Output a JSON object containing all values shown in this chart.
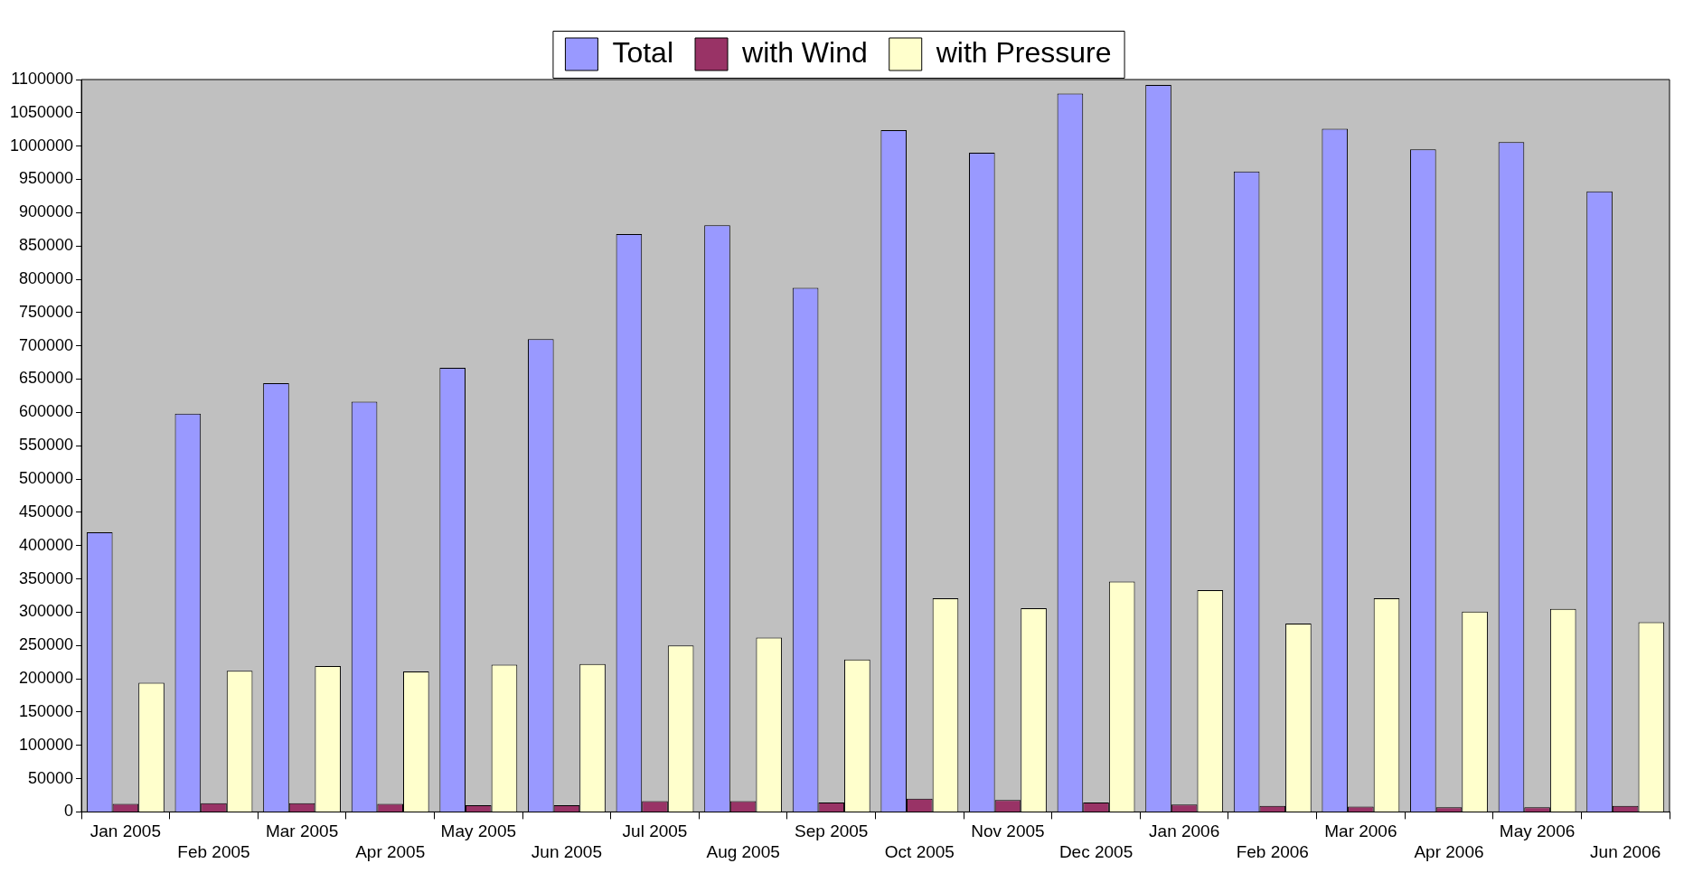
{
  "chart_data": {
    "type": "bar",
    "categories": [
      "Jan 2005",
      "Feb 2005",
      "Mar 2005",
      "Apr 2005",
      "May 2005",
      "Jun 2005",
      "Jul 2005",
      "Aug 2005",
      "Sep 2005",
      "Oct 2005",
      "Nov 2005",
      "Dec 2005",
      "Jan 2006",
      "Feb 2006",
      "Mar 2006",
      "Apr 2006",
      "May 2006",
      "Jun 2006"
    ],
    "series": [
      {
        "name": "Total",
        "color": "#9999ff",
        "values": [
          420000,
          598000,
          644000,
          616000,
          667000,
          710000,
          868000,
          881000,
          787000,
          1024000,
          990000,
          1079000,
          1092000,
          962000,
          1026000,
          995000,
          1006000,
          932000
        ]
      },
      {
        "name": "with Wind",
        "color": "#993366",
        "values": [
          12000,
          13000,
          13000,
          12000,
          10000,
          10000,
          16000,
          16000,
          14000,
          20000,
          18000,
          14000,
          11000,
          9000,
          8000,
          7000,
          7000,
          9000
        ]
      },
      {
        "name": "with Pressure",
        "color": "#ffffcc",
        "values": [
          194000,
          212000,
          219000,
          211000,
          221000,
          222000,
          250000,
          262000,
          229000,
          321000,
          306000,
          346000,
          333000,
          283000,
          321000,
          301000,
          305000,
          285000
        ]
      }
    ],
    "ylim": [
      0,
      1100000
    ],
    "yticks": [
      0,
      50000,
      100000,
      150000,
      200000,
      250000,
      300000,
      350000,
      400000,
      450000,
      500000,
      550000,
      600000,
      650000,
      700000,
      750000,
      800000,
      850000,
      900000,
      950000,
      1000000,
      1050000,
      1100000
    ],
    "grid": false,
    "legend": "top"
  }
}
